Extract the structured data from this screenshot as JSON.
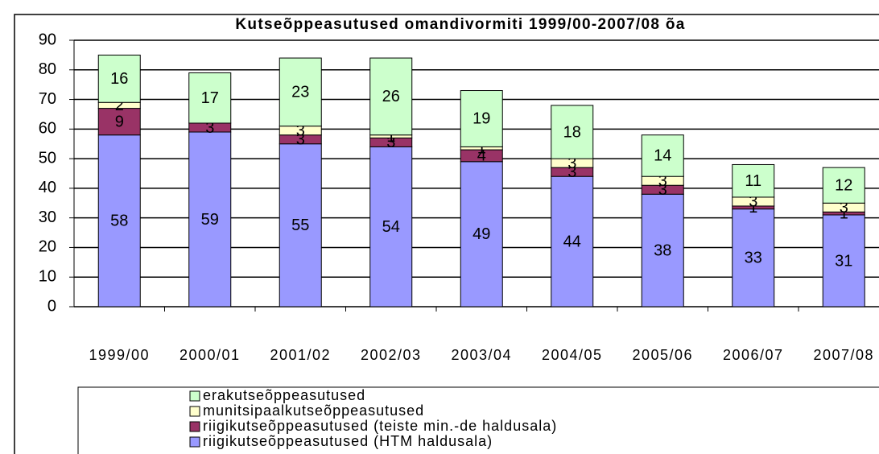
{
  "chart_data": {
    "type": "stacked_bar",
    "title": "Kutseõppeasutused omandivormiti 1999/00-2007/08 õa",
    "categories": [
      "1999/00",
      "2000/01",
      "2001/02",
      "2002/03",
      "2003/04",
      "2004/05",
      "2005/06",
      "2006/07",
      "2007/08"
    ],
    "series": [
      {
        "name": "riigikutseõppeasutused (HTM haldusala)",
        "color": "#9999ff",
        "values": [
          58,
          59,
          55,
          54,
          49,
          44,
          38,
          33,
          31
        ]
      },
      {
        "name": "riigikutseõppeasutused (teiste min.-de haldusala)",
        "color": "#993366",
        "values": [
          9,
          3,
          3,
          3,
          4,
          3,
          3,
          1,
          1
        ]
      },
      {
        "name": "munitsipaalkutseõppeasutused",
        "color": "#ffffcc",
        "values": [
          2,
          0,
          3,
          1,
          1,
          3,
          3,
          3,
          3
        ]
      },
      {
        "name": "erakutseõppeasutused",
        "color": "#ccffcc",
        "values": [
          16,
          17,
          23,
          26,
          19,
          18,
          14,
          11,
          12
        ]
      }
    ],
    "ylim": [
      0,
      90
    ],
    "yticks": [
      0,
      10,
      20,
      30,
      40,
      50,
      60,
      70,
      80,
      90
    ],
    "grid": true,
    "legend": "bottom"
  }
}
